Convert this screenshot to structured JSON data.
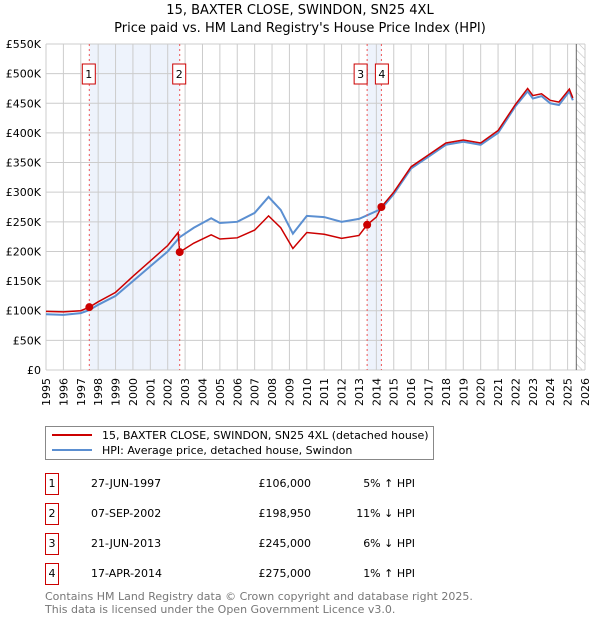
{
  "chart_data": {
    "type": "line",
    "title": "15, BAXTER CLOSE, SWINDON, SN25 4XL",
    "subtitle": "Price paid vs. HM Land Registry's House Price Index (HPI)",
    "xlim": [
      1995,
      2026
    ],
    "ylim": [
      0,
      550000
    ],
    "y_ticks": [
      0,
      50000,
      100000,
      150000,
      200000,
      250000,
      300000,
      350000,
      400000,
      450000,
      500000,
      550000
    ],
    "y_tick_labels": [
      "£0",
      "£50K",
      "£100K",
      "£150K",
      "£200K",
      "£250K",
      "£300K",
      "£350K",
      "£400K",
      "£450K",
      "£500K",
      "£550K"
    ],
    "x_ticks": [
      1995,
      1996,
      1997,
      1998,
      1999,
      2000,
      2001,
      2002,
      2003,
      2004,
      2005,
      2006,
      2007,
      2008,
      2009,
      2010,
      2011,
      2012,
      2013,
      2014,
      2015,
      2016,
      2017,
      2018,
      2019,
      2020,
      2021,
      2022,
      2023,
      2024,
      2025,
      2026
    ],
    "grid": true,
    "series": [
      {
        "name": "15, BAXTER CLOSE, SWINDON, SN25 4XL (detached house)",
        "color": "#cc0000",
        "x": [
          1995,
          1996,
          1997,
          1997.49,
          1998,
          1999,
          2000,
          2001,
          2002,
          2002.6,
          2002.69,
          2003.5,
          2004.5,
          2005,
          2006,
          2007,
          2007.8,
          2008.5,
          2009.2,
          2010,
          2011,
          2012,
          2013,
          2013.47,
          2014,
          2014.29,
          2015,
          2016,
          2017,
          2018,
          2019,
          2020,
          2021,
          2022,
          2022.7,
          2023,
          2023.5,
          2024,
          2024.5,
          2025.1,
          2025.3
        ],
        "y": [
          99000,
          98000,
          100000,
          106000,
          115000,
          131000,
          158000,
          184000,
          210000,
          232000,
          198950,
          214000,
          228000,
          221000,
          223000,
          236000,
          260000,
          240000,
          205000,
          232000,
          229000,
          222000,
          227000,
          245000,
          258000,
          275000,
          300000,
          343000,
          363000,
          383000,
          388000,
          383000,
          404000,
          448000,
          475000,
          463000,
          466000,
          455000,
          452000,
          474000,
          459000
        ]
      },
      {
        "name": "HPI: Average price, detached house, Swindon",
        "color": "#5b8fd1",
        "x": [
          1995,
          1996,
          1997,
          1997.49,
          1998,
          1999,
          2000,
          2001,
          2002,
          2002.69,
          2003.5,
          2004.5,
          2005,
          2006,
          2007,
          2007.8,
          2008.5,
          2009.2,
          2010,
          2011,
          2012,
          2013,
          2013.47,
          2014,
          2014.29,
          2015,
          2016,
          2017,
          2018,
          2019,
          2020,
          2021,
          2022,
          2022.7,
          2023,
          2023.5,
          2024,
          2024.5,
          2025.1,
          2025.3
        ],
        "y": [
          94000,
          93000,
          96000,
          101000,
          110000,
          125000,
          150000,
          175000,
          200000,
          224000,
          240000,
          256000,
          248000,
          250000,
          265000,
          292000,
          270000,
          230000,
          260000,
          258000,
          250000,
          255000,
          261000,
          268000,
          272000,
          297000,
          340000,
          360000,
          380000,
          385000,
          380000,
          400000,
          445000,
          470000,
          458000,
          462000,
          450000,
          447000,
          470000,
          455000
        ]
      }
    ],
    "sales": [
      {
        "label": "1",
        "x": 1997.49,
        "price": 106000
      },
      {
        "label": "2",
        "x": 2002.69,
        "price": 198950
      },
      {
        "label": "3",
        "x": 2013.47,
        "price": 245000
      },
      {
        "label": "4",
        "x": 2014.29,
        "price": 275000
      }
    ],
    "shaded_ranges": [
      [
        1997.49,
        2002.69
      ],
      [
        2013.47,
        2014.29
      ]
    ],
    "hatched_from": 2025.5
  },
  "legend": {
    "red": "15, BAXTER CLOSE, SWINDON, SN25 4XL (detached house)",
    "blue": "HPI: Average price, detached house, Swindon"
  },
  "transactions": [
    {
      "n": "1",
      "date": "27-JUN-1997",
      "price": "£106,000",
      "hpi": "5% ↑ HPI"
    },
    {
      "n": "2",
      "date": "07-SEP-2002",
      "price": "£198,950",
      "hpi": "11% ↓ HPI"
    },
    {
      "n": "3",
      "date": "21-JUN-2013",
      "price": "£245,000",
      "hpi": "6% ↓ HPI"
    },
    {
      "n": "4",
      "date": "17-APR-2014",
      "price": "£275,000",
      "hpi": "1% ↑ HPI"
    }
  ],
  "footer": {
    "line1": "Contains HM Land Registry data © Crown copyright and database right 2025.",
    "line2": "This data is licensed under the Open Government Licence v3.0."
  }
}
